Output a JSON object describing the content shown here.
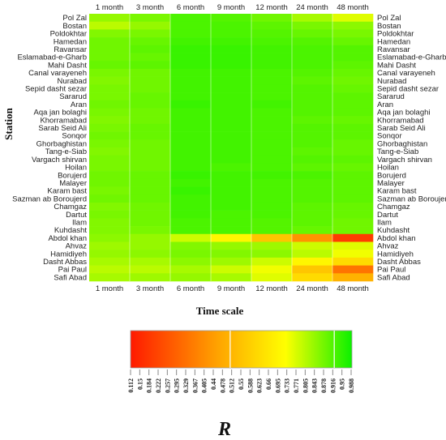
{
  "chart_data": {
    "type": "heatmap",
    "xlabel": "Time scale",
    "ylabel": "Station",
    "colorbar_label": "R",
    "columns": [
      "1 month",
      "3 month",
      "6 month",
      "9 month",
      "12 month",
      "24 month",
      "48 month"
    ],
    "rows": [
      "Pol Zal",
      "Bostan",
      "Poldokhtar",
      "Hamedan",
      "Ravansar",
      "Eslamabad-e-Gharb",
      "Mahi Dasht",
      "Canal varayeneh",
      "Nurabad",
      "Sepid dasht sezar",
      "Sararud",
      "Aran",
      "Aqa jan bolaghi",
      "Khorramabad",
      "Sarab Seid Ali",
      "Sonqor",
      "Ghorbaghistan",
      "Tang-e-Siab",
      "Vargach shirvan",
      "Hoilan",
      "Borujerd",
      "Malayer",
      "Karam bast",
      "Sazman ab Boroujerd",
      "Chamgaz",
      "Dartut",
      "Ilam",
      "Kuhdasht",
      "Abdol khan",
      "Ahvaz",
      "Hamidiyeh",
      "Dasht Abbas",
      "Pai Paul",
      "Safi Abad"
    ],
    "values": [
      [
        0.84,
        0.87,
        0.92,
        0.91,
        0.88,
        0.82,
        0.76
      ],
      [
        0.8,
        0.84,
        0.92,
        0.92,
        0.9,
        0.87,
        0.85
      ],
      [
        0.86,
        0.87,
        0.92,
        0.92,
        0.91,
        0.89,
        0.87
      ],
      [
        0.88,
        0.89,
        0.93,
        0.93,
        0.92,
        0.91,
        0.89
      ],
      [
        0.88,
        0.9,
        0.94,
        0.94,
        0.93,
        0.92,
        0.91
      ],
      [
        0.88,
        0.89,
        0.94,
        0.94,
        0.93,
        0.92,
        0.91
      ],
      [
        0.89,
        0.9,
        0.94,
        0.94,
        0.93,
        0.92,
        0.9
      ],
      [
        0.87,
        0.88,
        0.93,
        0.93,
        0.92,
        0.91,
        0.89
      ],
      [
        0.86,
        0.88,
        0.93,
        0.93,
        0.92,
        0.9,
        0.88
      ],
      [
        0.87,
        0.88,
        0.93,
        0.93,
        0.92,
        0.91,
        0.89
      ],
      [
        0.87,
        0.89,
        0.93,
        0.93,
        0.92,
        0.91,
        0.9
      ],
      [
        0.88,
        0.89,
        0.94,
        0.93,
        0.93,
        0.91,
        0.9
      ],
      [
        0.87,
        0.88,
        0.93,
        0.93,
        0.92,
        0.91,
        0.9
      ],
      [
        0.86,
        0.88,
        0.93,
        0.93,
        0.92,
        0.9,
        0.89
      ],
      [
        0.87,
        0.89,
        0.93,
        0.93,
        0.92,
        0.91,
        0.9
      ],
      [
        0.88,
        0.89,
        0.93,
        0.93,
        0.92,
        0.91,
        0.9
      ],
      [
        0.87,
        0.88,
        0.93,
        0.93,
        0.92,
        0.91,
        0.89
      ],
      [
        0.86,
        0.88,
        0.93,
        0.93,
        0.92,
        0.9,
        0.89
      ],
      [
        0.87,
        0.88,
        0.93,
        0.93,
        0.92,
        0.91,
        0.9
      ],
      [
        0.87,
        0.88,
        0.93,
        0.92,
        0.92,
        0.9,
        0.89
      ],
      [
        0.88,
        0.89,
        0.94,
        0.93,
        0.93,
        0.92,
        0.9
      ],
      [
        0.88,
        0.89,
        0.93,
        0.93,
        0.92,
        0.91,
        0.9
      ],
      [
        0.87,
        0.89,
        0.94,
        0.93,
        0.92,
        0.91,
        0.9
      ],
      [
        0.88,
        0.89,
        0.93,
        0.93,
        0.92,
        0.91,
        0.9
      ],
      [
        0.86,
        0.88,
        0.93,
        0.93,
        0.92,
        0.9,
        0.89
      ],
      [
        0.87,
        0.88,
        0.93,
        0.92,
        0.92,
        0.9,
        0.89
      ],
      [
        0.86,
        0.88,
        0.92,
        0.92,
        0.91,
        0.9,
        0.88
      ],
      [
        0.86,
        0.87,
        0.92,
        0.92,
        0.91,
        0.89,
        0.88
      ],
      [
        0.85,
        0.84,
        0.78,
        0.7,
        0.56,
        0.42,
        0.2
      ],
      [
        0.83,
        0.84,
        0.86,
        0.84,
        0.83,
        0.78,
        0.76
      ],
      [
        0.84,
        0.85,
        0.87,
        0.86,
        0.85,
        0.8,
        0.74
      ],
      [
        0.82,
        0.82,
        0.85,
        0.83,
        0.78,
        0.7,
        0.62
      ],
      [
        0.8,
        0.8,
        0.82,
        0.78,
        0.74,
        0.56,
        0.34
      ],
      [
        0.82,
        0.83,
        0.84,
        0.82,
        0.76,
        0.62,
        0.5
      ]
    ],
    "colorbar": {
      "min": 0.112,
      "max": 0.988,
      "ticks": [
        "0.112",
        "0.15",
        "0.184",
        "0.222",
        "0.257",
        "0.295",
        "0.329",
        "0.367",
        "0.405",
        "0.44",
        "0.478",
        "0.512",
        "0.55",
        "0.588",
        "0.623",
        "0.66",
        "0.695",
        "0.733",
        "0.771",
        "0.805",
        "0.843",
        "0.878",
        "0.916",
        "0.95",
        "0.988"
      ],
      "colors": [
        "#ff1a00",
        "#ffa500",
        "#ffff00",
        "#0cf000"
      ]
    }
  }
}
